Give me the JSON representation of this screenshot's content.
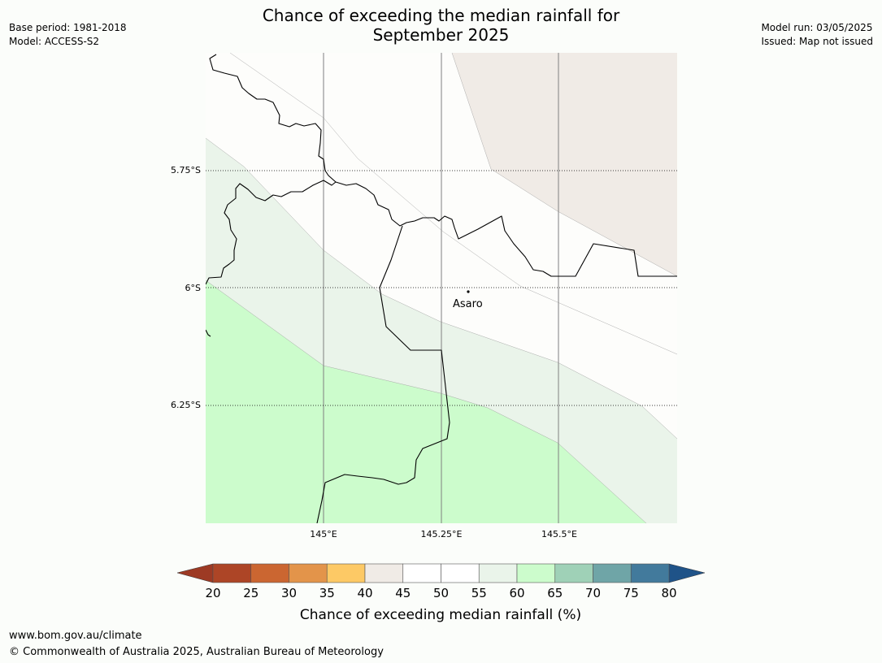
{
  "title": "Chance of exceeding the median rainfall for September 2025",
  "title_line1": "Chance of exceeding the median rainfall for",
  "title_line2": "September 2025",
  "meta_left": {
    "base_period": "Base period: 1981-2018",
    "model": "Model: ACCESS-S2"
  },
  "meta_right": {
    "model_run": "Model run: 03/05/2025",
    "issued": "Issued: Map not issued"
  },
  "map": {
    "lat_labels": [
      "5.75°S",
      "6°S",
      "6.25°S"
    ],
    "lon_labels": [
      "145°E",
      "145.25°E",
      "145.5°E"
    ],
    "place": "Asaro",
    "colors": {
      "band_45_50": "#f0ebe6",
      "band_55_60": "#eaf4ea",
      "band_60_65": "#ccfccc",
      "land_bg": "#fdfdfb"
    }
  },
  "colorbar": {
    "ticks": [
      "20",
      "25",
      "30",
      "35",
      "40",
      "45",
      "50",
      "55",
      "60",
      "65",
      "70",
      "75",
      "80"
    ],
    "label": "Chance of exceeding median rainfall (%)",
    "colors": [
      "#ad4526",
      "#cb6631",
      "#e3944a",
      "#fdc965",
      "#f0ebe6",
      "#ffffff",
      "#ffffff",
      "#eaf4ea",
      "#ccfccc",
      "#9fd1b7",
      "#6fa5a7",
      "#427a9c"
    ],
    "low_arrow_color": "#9d3a24",
    "high_arrow_color": "#1f5388"
  },
  "footer": {
    "url": "www.bom.gov.au/climate",
    "copyright": "© Commonwealth of Australia 2025, Australian Bureau of Meteorology"
  }
}
